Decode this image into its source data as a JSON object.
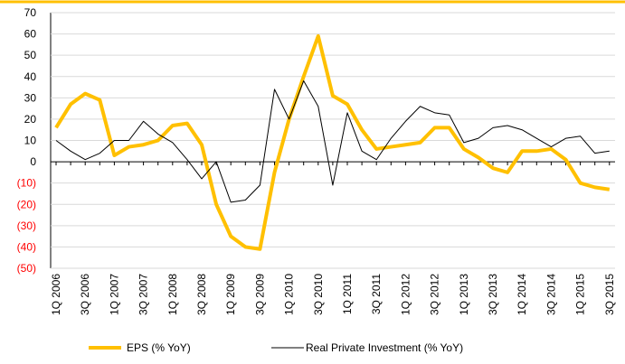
{
  "chart_data": {
    "type": "line",
    "categories": [
      "1Q 2006",
      null,
      "3Q 2006",
      null,
      "1Q 2007",
      null,
      "3Q 2007",
      null,
      "1Q 2008",
      null,
      "3Q 2008",
      null,
      "1Q 2009",
      null,
      "3Q 2009",
      null,
      "1Q 2010",
      null,
      "3Q 2010",
      null,
      "1Q 2011",
      null,
      "3Q 2011",
      null,
      "1Q 2012",
      null,
      "3Q 2012",
      null,
      "1Q 2013",
      null,
      "3Q 2013",
      null,
      "1Q 2014",
      null,
      "3Q 2014",
      null,
      "1Q 2015",
      null,
      "3Q 2015"
    ],
    "series": [
      {
        "name": "EPS (% YoY)",
        "color": "#ffc000",
        "width": 4,
        "values": [
          16,
          27,
          32,
          29,
          3,
          7,
          8,
          10,
          17,
          18,
          8,
          -20,
          -35,
          -40,
          -41,
          -5,
          20,
          40,
          59,
          31,
          27,
          15,
          6,
          7,
          8,
          9,
          16,
          16,
          6,
          2,
          -3,
          -5,
          5,
          5,
          6,
          1,
          -10,
          -12,
          -13
        ]
      },
      {
        "name": "Real Private Investment (% YoY)",
        "color": "#000000",
        "width": 1,
        "values": [
          10,
          5,
          1,
          4,
          10,
          10,
          19,
          13,
          9,
          1,
          -8,
          0,
          -19,
          -18,
          -11,
          34,
          20,
          38,
          26,
          -11,
          23,
          5,
          1,
          11,
          19,
          26,
          23,
          22,
          9,
          11,
          16,
          17,
          15,
          11,
          7,
          11,
          12,
          4,
          5
        ]
      }
    ],
    "ylim": [
      -50,
      70
    ],
    "yticks": [
      {
        "value": -50,
        "label": "(50)"
      },
      {
        "value": -40,
        "label": "(40)"
      },
      {
        "value": -30,
        "label": "(30)"
      },
      {
        "value": -20,
        "label": "(20)"
      },
      {
        "value": -10,
        "label": "(10)"
      },
      0,
      10,
      20,
      30,
      40,
      50,
      60,
      70
    ],
    "negative_tick_color": "#ff0000",
    "grid": true
  }
}
